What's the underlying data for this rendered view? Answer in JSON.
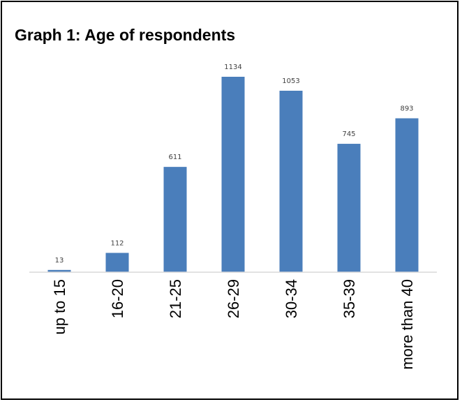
{
  "chart_data": {
    "type": "bar",
    "title": "Graph 1: Age of respondents",
    "xlabel": "",
    "ylabel": "",
    "categories": [
      "up to 15",
      "16-20",
      "21-25",
      "26-29",
      "30-34",
      "35-39",
      "more than 40"
    ],
    "values": [
      13,
      112,
      611,
      1134,
      1053,
      745,
      893
    ],
    "ylim": [
      0,
      1134
    ],
    "grid": false,
    "legend": "none",
    "data_labels": true,
    "bar_color": "#4a7ebb",
    "axis_color": "#d9d9d9"
  }
}
